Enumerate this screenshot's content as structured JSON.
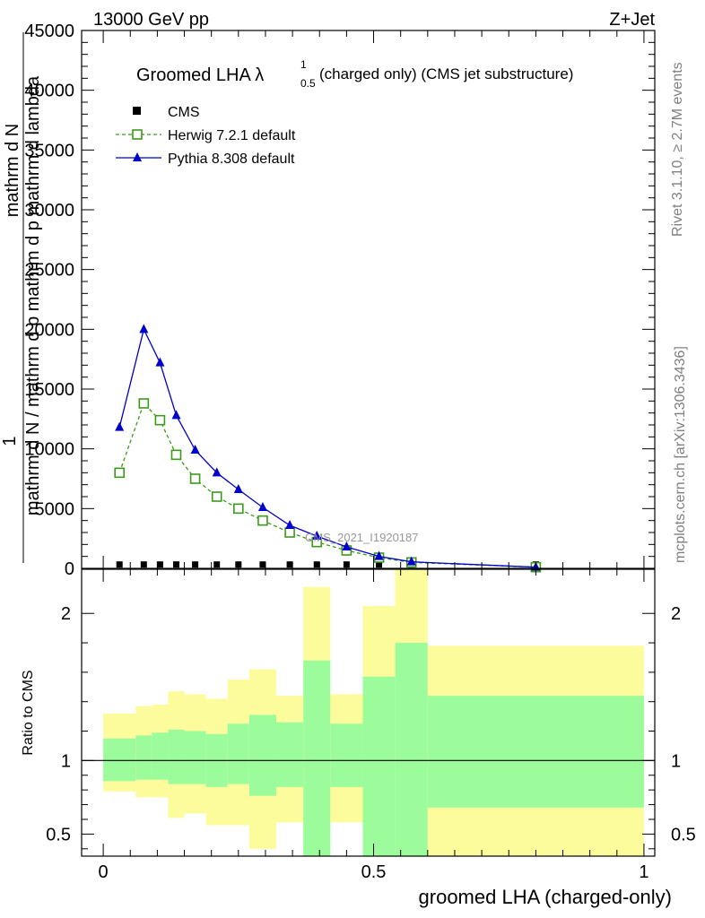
{
  "header": {
    "energy": "13000 GeV pp",
    "process": "Z+Jet",
    "side_events": "Rivet 3.1.10, ≥ 2.7M events",
    "side_source": "mcplots.cern.ch [arXiv:1306.3436]"
  },
  "chart_data": [
    {
      "type": "line",
      "title_main": "Groomed LHA λ",
      "title_sup": "1",
      "title_sub": "0.5",
      "title_rest": "(charged only) (CMS jet substructure)",
      "ylabel_num": "mathrm d N",
      "ylabel_prefix": "1",
      "ylabel_den": "mathrm d N / mathrm d p mathrm d p mathrm d lambda",
      "watermark": "CMS_2021_I1920187",
      "xlim": [
        -0.04,
        1.02
      ],
      "ylim": [
        0,
        45000
      ],
      "yticks": [
        0,
        5000,
        10000,
        15000,
        20000,
        25000,
        30000,
        35000,
        40000,
        45000
      ],
      "ytick_labels": [
        "0",
        "5000",
        "10000",
        "15000",
        "20000",
        "25000",
        "30000",
        "35000",
        "40000",
        "45000"
      ],
      "grid": false,
      "legend_position": "top-left",
      "series": [
        {
          "name": "CMS",
          "marker": "square",
          "color": "#000000",
          "x": [
            0.03,
            0.075,
            0.105,
            0.135,
            0.17,
            0.21,
            0.25,
            0.295,
            0.345,
            0.395,
            0.45,
            0.51,
            0.57,
            0.8
          ],
          "y": [
            60,
            60,
            60,
            60,
            60,
            60,
            60,
            60,
            60,
            60,
            60,
            60,
            60,
            60
          ]
        },
        {
          "name": "Herwig 7.2.1 default",
          "marker": "open-square",
          "line": "dashed",
          "color": "#3c9a1a",
          "x": [
            0.03,
            0.075,
            0.105,
            0.135,
            0.17,
            0.21,
            0.25,
            0.295,
            0.345,
            0.395,
            0.45,
            0.51,
            0.57,
            0.8
          ],
          "y": [
            8000,
            13800,
            12400,
            9500,
            7500,
            6000,
            5000,
            4000,
            3000,
            2200,
            1500,
            900,
            500,
            100
          ]
        },
        {
          "name": "Pythia 8.308 default",
          "marker": "triangle",
          "line": "solid",
          "color": "#0000cc",
          "x": [
            0.03,
            0.075,
            0.105,
            0.135,
            0.17,
            0.21,
            0.25,
            0.295,
            0.345,
            0.395,
            0.45,
            0.51,
            0.57,
            0.8
          ],
          "y": [
            11800,
            20000,
            17200,
            12800,
            9900,
            8000,
            6600,
            5100,
            3600,
            2700,
            1800,
            1000,
            550,
            100
          ]
        }
      ]
    },
    {
      "type": "area",
      "ylabel": "Ratio to CMS",
      "xlabel": "groomed LHA (charged-only)",
      "xlim": [
        -0.04,
        1.02
      ],
      "ylim": [
        0.35,
        2.3
      ],
      "xticks": [
        0,
        0.5,
        1
      ],
      "xtick_labels": [
        "0",
        "0.5",
        "1"
      ],
      "yticks": [
        0.5,
        1,
        2
      ],
      "ytick_labels": [
        "0.5",
        "1",
        "2"
      ],
      "reference_line": 1,
      "band_colors": {
        "inner": "#9cfc9c",
        "outer": "#fcfc9c"
      },
      "bins": [
        {
          "lo": 0.0,
          "hi": 0.06,
          "inner": [
            0.86,
            1.15
          ],
          "outer": [
            0.79,
            1.32
          ]
        },
        {
          "lo": 0.06,
          "hi": 0.09,
          "inner": [
            0.87,
            1.17
          ],
          "outer": [
            0.75,
            1.37
          ]
        },
        {
          "lo": 0.09,
          "hi": 0.12,
          "inner": [
            0.87,
            1.19
          ],
          "outer": [
            0.75,
            1.38
          ]
        },
        {
          "lo": 0.12,
          "hi": 0.15,
          "inner": [
            0.84,
            1.21
          ],
          "outer": [
            0.61,
            1.47
          ]
        },
        {
          "lo": 0.15,
          "hi": 0.19,
          "inner": [
            0.84,
            1.2
          ],
          "outer": [
            0.64,
            1.45
          ]
        },
        {
          "lo": 0.19,
          "hi": 0.23,
          "inner": [
            0.82,
            1.18
          ],
          "outer": [
            0.56,
            1.42
          ]
        },
        {
          "lo": 0.23,
          "hi": 0.27,
          "inner": [
            0.84,
            1.25
          ],
          "outer": [
            0.56,
            1.55
          ]
        },
        {
          "lo": 0.27,
          "hi": 0.32,
          "inner": [
            0.76,
            1.31
          ],
          "outer": [
            0.4,
            1.62
          ]
        },
        {
          "lo": 0.32,
          "hi": 0.37,
          "inner": [
            0.82,
            1.26
          ],
          "outer": [
            0.58,
            1.44
          ]
        },
        {
          "lo": 0.37,
          "hi": 0.42,
          "inner": [
            0.35,
            1.68
          ],
          "outer": [
            0.35,
            2.18
          ]
        },
        {
          "lo": 0.42,
          "hi": 0.48,
          "inner": [
            0.82,
            1.25
          ],
          "outer": [
            0.58,
            1.45
          ]
        },
        {
          "lo": 0.48,
          "hi": 0.54,
          "inner": [
            0.35,
            1.57
          ],
          "outer": [
            0.35,
            2.05
          ]
        },
        {
          "lo": 0.54,
          "hi": 0.6,
          "inner": [
            0.35,
            1.8
          ],
          "outer": [
            0.35,
            2.3
          ]
        },
        {
          "lo": 0.6,
          "hi": 1.0,
          "inner": [
            0.68,
            1.44
          ],
          "outer": [
            0.35,
            1.78
          ]
        }
      ]
    }
  ]
}
